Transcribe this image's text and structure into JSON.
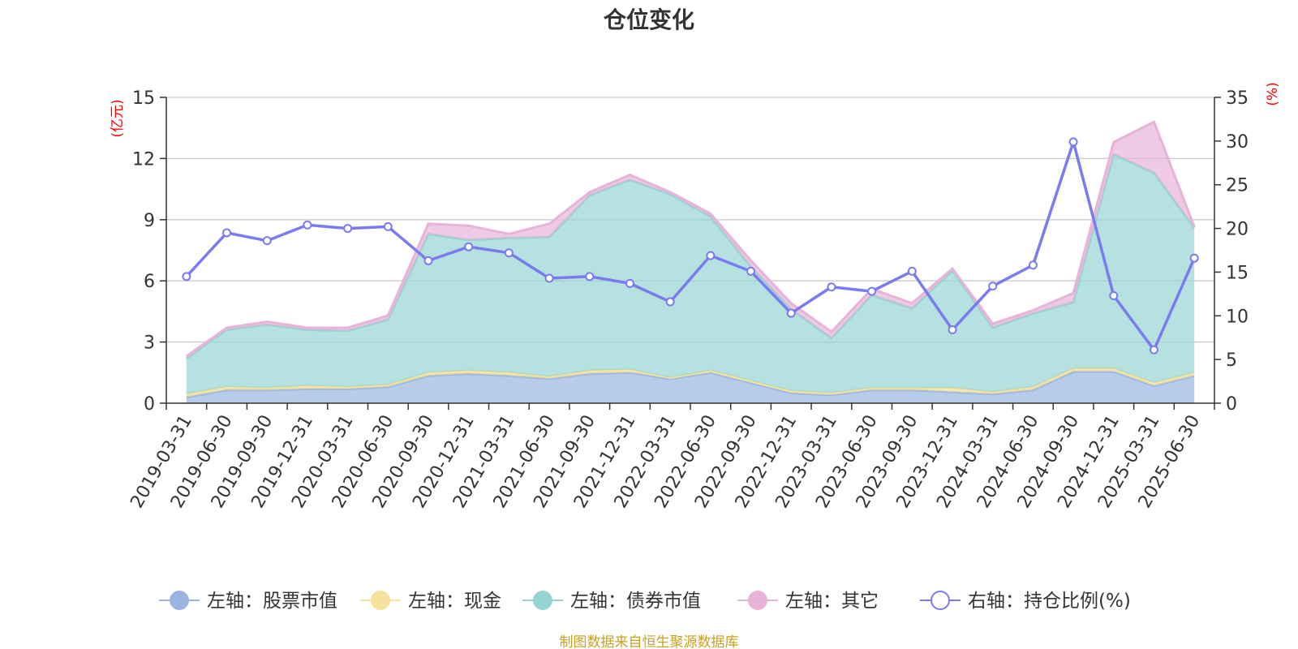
{
  "chart_data": {
    "type": "area",
    "title": "仓位变化",
    "left_unit": "(亿元)",
    "right_unit": "(%)",
    "left_ylim": [
      0,
      15
    ],
    "left_ticks": [
      "0",
      "3",
      "6",
      "9",
      "12",
      "15"
    ],
    "right_ylim": [
      0,
      35
    ],
    "right_ticks": [
      "0",
      "5",
      "10",
      "15",
      "20",
      "25",
      "30",
      "35"
    ],
    "grid": true,
    "legend_position": "bottom",
    "categories": [
      "2019-03-31",
      "2019-06-30",
      "2019-09-30",
      "2019-12-31",
      "2020-03-31",
      "2020-06-30",
      "2020-09-30",
      "2020-12-31",
      "2021-03-31",
      "2021-06-30",
      "2021-09-30",
      "2021-12-31",
      "2022-03-31",
      "2022-06-30",
      "2022-09-30",
      "2022-12-31",
      "2023-03-31",
      "2023-06-30",
      "2023-09-30",
      "2023-12-31",
      "2024-03-31",
      "2024-06-30",
      "2024-09-30",
      "2024-12-31",
      "2025-03-31",
      "2025-06-30"
    ],
    "series": [
      {
        "name": "左轴：股票市值",
        "axis": "left",
        "kind": "stacked-area",
        "color": "#9ab6e0",
        "values": [
          0.3,
          0.65,
          0.65,
          0.7,
          0.7,
          0.8,
          1.35,
          1.45,
          1.35,
          1.2,
          1.45,
          1.5,
          1.2,
          1.5,
          1.0,
          0.5,
          0.4,
          0.65,
          0.65,
          0.55,
          0.45,
          0.65,
          1.55,
          1.55,
          0.85,
          1.35
        ]
      },
      {
        "name": "左轴：现金",
        "axis": "left",
        "kind": "stacked-area",
        "color": "#f5e29c",
        "values": [
          0.15,
          0.15,
          0.1,
          0.15,
          0.1,
          0.1,
          0.15,
          0.15,
          0.15,
          0.1,
          0.15,
          0.15,
          0.05,
          0.1,
          0.1,
          0.1,
          0.1,
          0.1,
          0.1,
          0.2,
          0.1,
          0.15,
          0.15,
          0.15,
          0.15,
          0.15
        ]
      },
      {
        "name": "左轴：债券市值",
        "axis": "left",
        "kind": "stacked-area",
        "color": "#96d4d4",
        "values": [
          1.75,
          2.8,
          3.1,
          2.75,
          2.75,
          3.2,
          6.8,
          6.4,
          6.6,
          6.85,
          8.6,
          9.3,
          9.0,
          7.55,
          5.6,
          4.0,
          2.7,
          4.55,
          3.9,
          5.75,
          3.15,
          3.6,
          3.25,
          10.5,
          10.3,
          7.1
        ]
      },
      {
        "name": "左轴：其它",
        "axis": "left",
        "kind": "stacked-area",
        "color": "#e7b3d8",
        "values": [
          0.1,
          0.1,
          0.15,
          0.1,
          0.15,
          0.2,
          0.5,
          0.7,
          0.2,
          0.65,
          0.15,
          0.25,
          0.1,
          0.15,
          0.3,
          0.3,
          0.3,
          0.3,
          0.25,
          0.1,
          0.2,
          0.15,
          0.45,
          0.6,
          2.5,
          0.05
        ]
      },
      {
        "name": "右轴：持仓比例(%)",
        "axis": "right",
        "kind": "line",
        "color": "#7b7bf0",
        "values": [
          14.5,
          19.5,
          18.6,
          20.4,
          20.0,
          20.2,
          16.3,
          17.9,
          17.2,
          14.3,
          14.5,
          13.7,
          11.6,
          16.9,
          15.1,
          10.3,
          13.3,
          12.8,
          15.1,
          8.4,
          13.4,
          15.8,
          29.9,
          12.3,
          6.1,
          16.6
        ]
      }
    ],
    "source_note": "制图数据来自恒生聚源数据库"
  }
}
